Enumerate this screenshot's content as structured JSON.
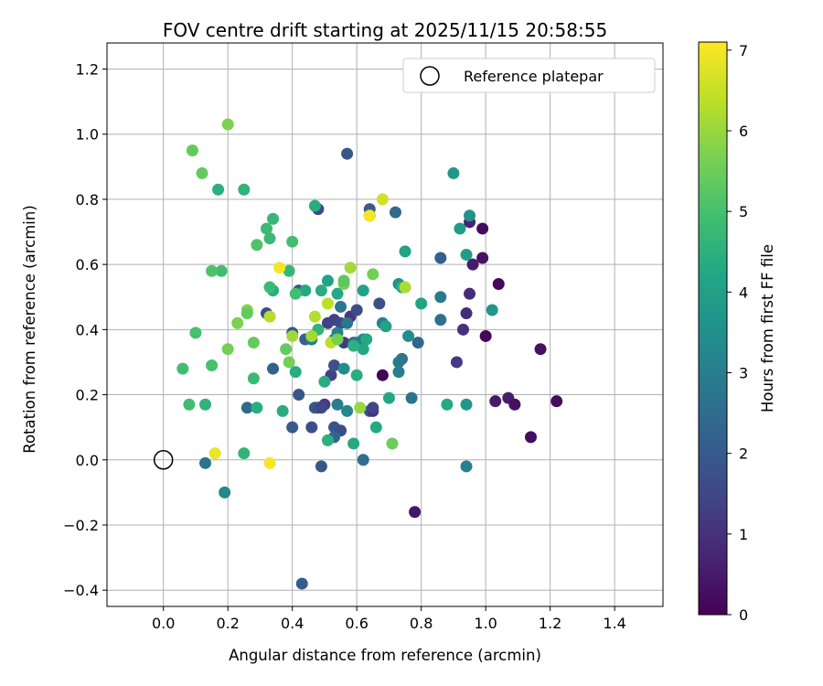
{
  "chart_data": {
    "type": "scatter",
    "title": "FOV centre drift starting at 2025/11/15 20:58:55",
    "xlabel": "Angular distance from reference (arcmin)",
    "ylabel": "Rotation from reference (arcmin)",
    "xlim": [
      -0.175,
      1.55
    ],
    "ylim": [
      -0.45,
      1.28
    ],
    "xticks": [
      "0.0",
      "0.2",
      "0.4",
      "0.6",
      "0.8",
      "1.0",
      "1.2",
      "1.4"
    ],
    "yticks": [
      "−0.4",
      "−0.2",
      "0.0",
      "0.2",
      "0.4",
      "0.6",
      "0.8",
      "1.0",
      "1.2"
    ],
    "xtick_values": [
      0,
      0.2,
      0.4,
      0.6,
      0.8,
      1.0,
      1.2,
      1.4
    ],
    "ytick_values": [
      -0.4,
      -0.2,
      0,
      0.2,
      0.4,
      0.6,
      0.8,
      1.0,
      1.2
    ],
    "grid": true,
    "colormap": "viridis",
    "colorbar": {
      "label": "Hours from first FF file",
      "range": [
        0,
        7.1
      ],
      "ticks": [
        "0",
        "1",
        "2",
        "3",
        "4",
        "5",
        "6",
        "7"
      ],
      "tick_values": [
        0,
        1,
        2,
        3,
        4,
        5,
        6,
        7
      ]
    },
    "legend": {
      "label": "Reference platepar",
      "placement": "top-right"
    },
    "reference_point": [
      0,
      0
    ],
    "points": [
      [
        0.68,
        0.26,
        0.05
      ],
      [
        0.78,
        -0.16,
        0.4
      ],
      [
        0.96,
        0.6,
        0.55
      ],
      [
        0.99,
        0.71,
        0.2
      ],
      [
        1.0,
        0.38,
        0.1
      ],
      [
        1.04,
        0.54,
        0.15
      ],
      [
        1.03,
        0.18,
        0.5
      ],
      [
        1.07,
        0.19,
        0.6
      ],
      [
        1.09,
        0.17,
        0.3
      ],
      [
        1.14,
        0.07,
        0.25
      ],
      [
        1.17,
        0.34,
        0.3
      ],
      [
        1.22,
        0.18,
        0.2
      ],
      [
        0.99,
        0.62,
        0.35
      ],
      [
        0.95,
        0.73,
        0.7
      ],
      [
        0.94,
        0.45,
        0.9
      ],
      [
        0.95,
        0.51,
        0.9
      ],
      [
        0.93,
        0.4,
        1.0
      ],
      [
        0.91,
        0.3,
        1.2
      ],
      [
        0.57,
        0.94,
        1.9
      ],
      [
        0.48,
        0.77,
        1.6
      ],
      [
        0.64,
        0.77,
        2.1
      ],
      [
        0.64,
        0.75,
        1.5
      ],
      [
        0.72,
        0.76,
        2.4
      ],
      [
        0.53,
        0.43,
        1.3
      ],
      [
        0.58,
        0.44,
        1.1
      ],
      [
        0.56,
        0.36,
        1.2
      ],
      [
        0.55,
        0.42,
        1.5
      ],
      [
        0.51,
        0.42,
        1.4
      ],
      [
        0.52,
        0.26,
        1.4
      ],
      [
        0.53,
        0.29,
        1.8
      ],
      [
        0.6,
        0.46,
        1.6
      ],
      [
        0.67,
        0.48,
        1.7
      ],
      [
        0.5,
        0.17,
        1.2
      ],
      [
        0.48,
        0.16,
        1.3
      ],
      [
        0.47,
        0.16,
        1.9
      ],
      [
        0.49,
        0.16,
        1.5
      ],
      [
        0.46,
        0.1,
        1.7
      ],
      [
        0.53,
        0.1,
        1.9
      ],
      [
        0.55,
        0.09,
        1.6
      ],
      [
        0.53,
        0.07,
        2.3
      ],
      [
        0.49,
        -0.02,
        1.9
      ],
      [
        0.62,
        0.0,
        2.6
      ],
      [
        0.64,
        0.15,
        2.0
      ],
      [
        0.65,
        0.15,
        1.0
      ],
      [
        0.65,
        0.16,
        1.5
      ],
      [
        0.43,
        -0.38,
        2.1
      ],
      [
        0.42,
        0.2,
        1.9
      ],
      [
        0.4,
        0.1,
        2.0
      ],
      [
        0.42,
        0.52,
        1.9
      ],
      [
        0.44,
        0.37,
        2.2
      ],
      [
        0.4,
        0.39,
        2.0
      ],
      [
        0.32,
        0.45,
        1.6
      ],
      [
        0.34,
        0.28,
        2.2
      ],
      [
        0.26,
        0.16,
        2.4
      ],
      [
        0.13,
        -0.01,
        2.7
      ],
      [
        0.19,
        -0.1,
        3.3
      ],
      [
        0.94,
        -0.02,
        3.1
      ],
      [
        0.9,
        0.88,
        3.8
      ],
      [
        0.95,
        0.75,
        3.6
      ],
      [
        0.86,
        0.62,
        2.2
      ],
      [
        0.86,
        0.5,
        2.9
      ],
      [
        0.86,
        0.43,
        2.6
      ],
      [
        0.79,
        0.36,
        2.3
      ],
      [
        0.77,
        0.19,
        2.7
      ],
      [
        0.73,
        0.3,
        3.0
      ],
      [
        0.74,
        0.31,
        2.8
      ],
      [
        0.73,
        0.27,
        3.0
      ],
      [
        0.73,
        0.54,
        3.5
      ],
      [
        0.76,
        0.38,
        3.4
      ],
      [
        0.68,
        0.42,
        3.1
      ],
      [
        0.62,
        0.37,
        3.3
      ],
      [
        0.59,
        0.36,
        2.5
      ],
      [
        0.6,
        0.36,
        2.9
      ],
      [
        0.57,
        0.42,
        2.8
      ],
      [
        0.55,
        0.47,
        2.8
      ],
      [
        0.54,
        0.39,
        3.1
      ],
      [
        0.53,
        0.37,
        3.4
      ],
      [
        0.56,
        0.28,
        3.4
      ],
      [
        0.54,
        0.17,
        3.0
      ],
      [
        0.57,
        0.15,
        3.3
      ],
      [
        0.46,
        0.37,
        2.9
      ],
      [
        0.92,
        0.71,
        3.9
      ],
      [
        0.94,
        0.63,
        3.9
      ],
      [
        1.02,
        0.46,
        3.7
      ],
      [
        0.94,
        0.17,
        3.7
      ],
      [
        0.88,
        0.17,
        4.3
      ],
      [
        0.8,
        0.48,
        4.1
      ],
      [
        0.75,
        0.64,
        4.1
      ],
      [
        0.74,
        0.53,
        4.4
      ],
      [
        0.69,
        0.41,
        4.1
      ],
      [
        0.7,
        0.19,
        4.2
      ],
      [
        0.66,
        0.1,
        4.3
      ],
      [
        0.6,
        0.26,
        4.4
      ],
      [
        0.62,
        0.34,
        4.2
      ],
      [
        0.63,
        0.37,
        4.3
      ],
      [
        0.62,
        0.52,
        4.1
      ],
      [
        0.59,
        0.35,
        4.5
      ],
      [
        0.59,
        0.05,
        4.3
      ],
      [
        0.54,
        0.51,
        4.3
      ],
      [
        0.51,
        0.55,
        4.1
      ],
      [
        0.51,
        0.06,
        4.5
      ],
      [
        0.5,
        0.24,
        4.4
      ],
      [
        0.49,
        0.52,
        4.4
      ],
      [
        0.47,
        0.78,
        4.4
      ],
      [
        0.48,
        0.4,
        4.6
      ],
      [
        0.44,
        0.52,
        4.3
      ],
      [
        0.41,
        0.27,
        4.4
      ],
      [
        0.41,
        0.51,
        4.9
      ],
      [
        0.39,
        0.58,
        4.7
      ],
      [
        0.4,
        0.67,
        4.9
      ],
      [
        0.37,
        0.15,
        4.4
      ],
      [
        0.34,
        0.52,
        4.4
      ],
      [
        0.33,
        0.53,
        4.8
      ],
      [
        0.33,
        0.68,
        4.8
      ],
      [
        0.34,
        0.74,
        4.7
      ],
      [
        0.32,
        0.71,
        4.8
      ],
      [
        0.29,
        0.66,
        5.1
      ],
      [
        0.29,
        0.16,
        4.4
      ],
      [
        0.28,
        0.25,
        4.8
      ],
      [
        0.25,
        0.83,
        4.6
      ],
      [
        0.25,
        0.02,
        4.6
      ],
      [
        0.17,
        0.83,
        4.5
      ],
      [
        0.18,
        0.58,
        4.9
      ],
      [
        0.15,
        0.58,
        5.1
      ],
      [
        0.15,
        0.29,
        5.0
      ],
      [
        0.13,
        0.17,
        4.6
      ],
      [
        0.08,
        0.17,
        4.9
      ],
      [
        0.06,
        0.28,
        4.9
      ],
      [
        0.1,
        0.39,
        5.0
      ],
      [
        0.09,
        0.95,
        5.4
      ],
      [
        0.12,
        0.88,
        5.4
      ],
      [
        0.2,
        0.34,
        5.6
      ],
      [
        0.2,
        1.03,
        5.7
      ],
      [
        0.23,
        0.42,
        5.7
      ],
      [
        0.26,
        0.46,
        5.8
      ],
      [
        0.26,
        0.45,
        5.4
      ],
      [
        0.28,
        0.36,
        5.4
      ],
      [
        0.33,
        0.44,
        6.3
      ],
      [
        0.38,
        0.34,
        5.4
      ],
      [
        0.39,
        0.3,
        5.6
      ],
      [
        0.4,
        0.38,
        6.1
      ],
      [
        0.46,
        0.38,
        6.1
      ],
      [
        0.47,
        0.44,
        6.3
      ],
      [
        0.51,
        0.48,
        6.4
      ],
      [
        0.52,
        0.36,
        6.4
      ],
      [
        0.54,
        0.37,
        5.6
      ],
      [
        0.56,
        0.54,
        5.6
      ],
      [
        0.56,
        0.55,
        5.3
      ],
      [
        0.58,
        0.59,
        6.1
      ],
      [
        0.61,
        0.16,
        6.0
      ],
      [
        0.65,
        0.57,
        5.6
      ],
      [
        0.68,
        0.8,
        6.6
      ],
      [
        0.71,
        0.05,
        5.5
      ],
      [
        0.75,
        0.53,
        6.2
      ],
      [
        0.36,
        0.59,
        7.0
      ],
      [
        0.64,
        0.75,
        7.0
      ],
      [
        0.33,
        -0.01,
        7.0
      ],
      [
        0.16,
        0.02,
        6.9
      ]
    ]
  }
}
